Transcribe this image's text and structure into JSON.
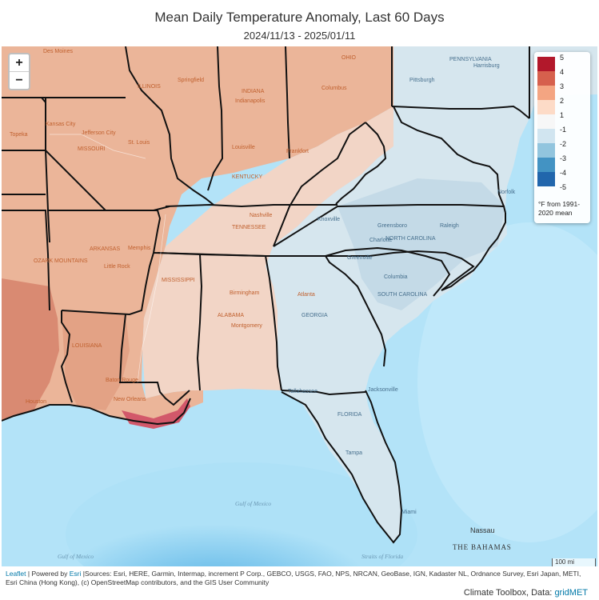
{
  "title": "Mean Daily Temperature Anomaly, Last 60 Days",
  "subtitle": "2024/11/13 - 2025/01/11",
  "zoom": {
    "in_label": "+",
    "out_label": "−"
  },
  "legend": {
    "items": [
      {
        "label": "5",
        "color": "#b2182b"
      },
      {
        "label": "4",
        "color": "#d6604d"
      },
      {
        "label": "3",
        "color": "#f4a582"
      },
      {
        "label": "2",
        "color": "#fddbc7"
      },
      {
        "label": "1",
        "color": "#f7f7f7"
      },
      {
        "label": "-1",
        "color": "#d1e5f0"
      },
      {
        "label": "-2",
        "color": "#92c5de"
      },
      {
        "label": "-3",
        "color": "#4393c3"
      },
      {
        "label": "-4",
        "color": "#2166ac"
      },
      {
        "label": "-5",
        "color": ""
      }
    ],
    "unit": "°F from 1991-2020 mean"
  },
  "scale_bar": "100 mi",
  "attribution": {
    "leaflet": "Leaflet",
    "separator1": " | Powered by ",
    "esri": "Esri",
    "sources": " |Sources: Esri, HERE, Garmin, Intermap, increment P Corp., GEBCO, USGS, FAO, NPS, NRCAN, GeoBase, IGN, Kadaster NL, Ordnance Survey, Esri Japan, METI, Esri China (Hong Kong), (c) OpenStreetMap contributors, and the GIS User Community"
  },
  "footer": {
    "text": "Climate Toolbox, Data: ",
    "link": "gridMET"
  },
  "places": {
    "des_moines": "Des Moines",
    "springfield_il": "Springfield",
    "indianapolis": "Indianapolis",
    "columbus": "Columbus",
    "pittsburgh": "Pittsburgh",
    "harrisburg": "Harrisburg",
    "kansas_city": "Kansas City",
    "jefferson_city": "Jefferson City",
    "topeka": "Topeka",
    "missouri": "MISSOURI",
    "st_louis": "St. Louis",
    "louisville": "Louisville",
    "frankfort": "Frankfort",
    "kentucky": "KENTUCKY",
    "nashville": "Nashville",
    "knoxville": "Knoxville",
    "tennessee": "TENNESSEE",
    "memphis": "Memphis",
    "little_rock": "Little Rock",
    "arkansas": "ARKANSAS",
    "mississippi": "MISSISSIPPI",
    "birmingham": "Birmingham",
    "atlanta": "Atlanta",
    "alabama": "ALABAMA",
    "montgomery": "Montgomery",
    "georgia": "GEORGIA",
    "greensboro": "Greensboro",
    "raleigh": "Raleigh",
    "north_carolina": "NORTH CAROLINA",
    "charlotte": "Charlotte",
    "greenville": "Greenville",
    "columbia": "Columbia",
    "south_carolina": "SOUTH CAROLINA",
    "norfolk": "Norfolk",
    "louisiana": "LOUISIANA",
    "baton_rouge": "Baton Rouge",
    "new_orleans": "New Orleans",
    "houston": "Houston",
    "tallahassee": "Tallahassee",
    "jacksonville": "Jacksonville",
    "florida": "FLORIDA",
    "tampa": "Tampa",
    "miami": "Miami",
    "nassau": "Nassau",
    "bahamas": "THE BAHAMAS",
    "gulf_mexico": "Gulf of Mexico",
    "gulf_mexico_sw": "Gulf of Mexico",
    "straits_florida": "Straits of Florida",
    "pennsylvania": "PENNSYLVANIA",
    "ohio": "OHIO",
    "indiana": "INDIANA",
    "illinois": "ILLINOIS",
    "ozark": "OZARK MOUNTAINS"
  }
}
